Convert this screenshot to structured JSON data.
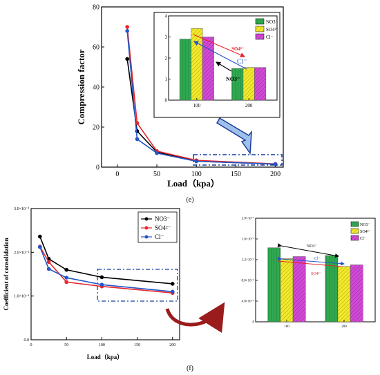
{
  "panel_e": {
    "caption": "(e)",
    "main": {
      "ylabel": "Compression factor",
      "xlabel": "Load（kpa）",
      "xticks": [
        "0",
        "50",
        "100",
        "150",
        "200"
      ],
      "yticks": [
        "0",
        "20",
        "40",
        "60",
        "80"
      ]
    },
    "inset": {
      "categories": [
        "100",
        "200"
      ],
      "yticks": [
        "0",
        "1",
        "2",
        "3",
        "4"
      ],
      "legend": [
        "NO3⁻",
        "SO4²⁻",
        "Cl⁻"
      ],
      "ann_so4": "SO4²⁻",
      "ann_cl": "Cl⁻",
      "ann_no3": "NO3⁻"
    }
  },
  "panel_f": {
    "caption": "(f)",
    "main": {
      "ylabel": "Coefficient of consolidation",
      "xlabel": "Load（kpa）",
      "xticks": [
        "0",
        "50",
        "100",
        "150",
        "200"
      ],
      "yticks": [
        "0.0",
        "1.0×10⁻³",
        "2.0×10⁻³",
        "3.0×10⁻³"
      ],
      "legend": [
        "NO3⁻",
        "SO4²⁻",
        "Cl⁻"
      ]
    },
    "inset": {
      "categories": [
        "100",
        "200"
      ],
      "yticks": [
        "0",
        "4.0×10⁻⁴",
        "8.0×10⁻⁴",
        "1.2×10⁻³",
        "1.6×10⁻³",
        "2.0×10⁻³"
      ],
      "legend": [
        "NO3⁻",
        "SO4²⁻",
        "Cl⁻"
      ],
      "ann_no3": "NO3⁻",
      "ann_cl": "Cl⁻",
      "ann_so4": "SO4²⁻"
    }
  },
  "colors": {
    "no3_line": "#000000",
    "so4_line": "#e8262b",
    "cl_line": "#2356c8",
    "no3_bar": "#2fa84f",
    "so4_bar": "#f2ea2c",
    "cl_bar": "#d24ad6",
    "highlight": "#1a3c9c",
    "arrow_fill": "#9ec0ea",
    "curve_arrow": "#9b1c1c"
  },
  "chart_data": [
    {
      "type": "line",
      "x": [
        12.5,
        25,
        50,
        100,
        200
      ],
      "series": [
        {
          "name": "NO3⁻",
          "values": [
            54,
            18,
            7.5,
            3.0,
            1.5
          ]
        },
        {
          "name": "SO4²⁻",
          "values": [
            70,
            22,
            8,
            3.4,
            1.6
          ]
        },
        {
          "name": "Cl⁻",
          "values": [
            68,
            14,
            7,
            2.9,
            1.5
          ]
        }
      ],
      "xlim": [
        -20,
        210
      ],
      "ylim": [
        0,
        80
      ],
      "ylabel": "Compression factor",
      "xlabel": "Load（kpa）",
      "grid": false
    },
    {
      "type": "bar",
      "categories": [
        "100",
        "200"
      ],
      "series": [
        {
          "name": "NO3⁻",
          "values": [
            2.9,
            1.5
          ]
        },
        {
          "name": "SO4²⁻",
          "values": [
            3.4,
            1.55
          ]
        },
        {
          "name": "Cl⁻",
          "values": [
            3.0,
            1.55
          ]
        }
      ],
      "ylim": [
        0,
        4
      ]
    },
    {
      "type": "line",
      "x": [
        12.5,
        25,
        50,
        100,
        200
      ],
      "series": [
        {
          "name": "NO3⁻",
          "values": [
            0.00236,
            0.00185,
            0.0016,
            0.00143,
            0.00128
          ]
        },
        {
          "name": "SO4²⁻",
          "values": [
            0.00213,
            0.00178,
            0.00132,
            0.00122,
            0.00107
          ]
        },
        {
          "name": "Cl⁻",
          "values": [
            0.00212,
            0.00162,
            0.00142,
            0.00126,
            0.0011
          ]
        }
      ],
      "xlim": [
        0,
        210
      ],
      "ylim": [
        0,
        0.003
      ],
      "ylabel": "Coefficient of consolidation",
      "xlabel": "Load（kpa）",
      "legend": "top-right",
      "grid": false
    },
    {
      "type": "bar",
      "categories": [
        "100",
        "200"
      ],
      "series": [
        {
          "name": "NO3⁻",
          "values": [
            0.00143,
            0.00128
          ]
        },
        {
          "name": "SO4²⁻",
          "values": [
            0.00122,
            0.00107
          ]
        },
        {
          "name": "Cl⁻",
          "values": [
            0.00126,
            0.0011
          ]
        }
      ],
      "ylim": [
        0,
        0.002
      ]
    }
  ]
}
